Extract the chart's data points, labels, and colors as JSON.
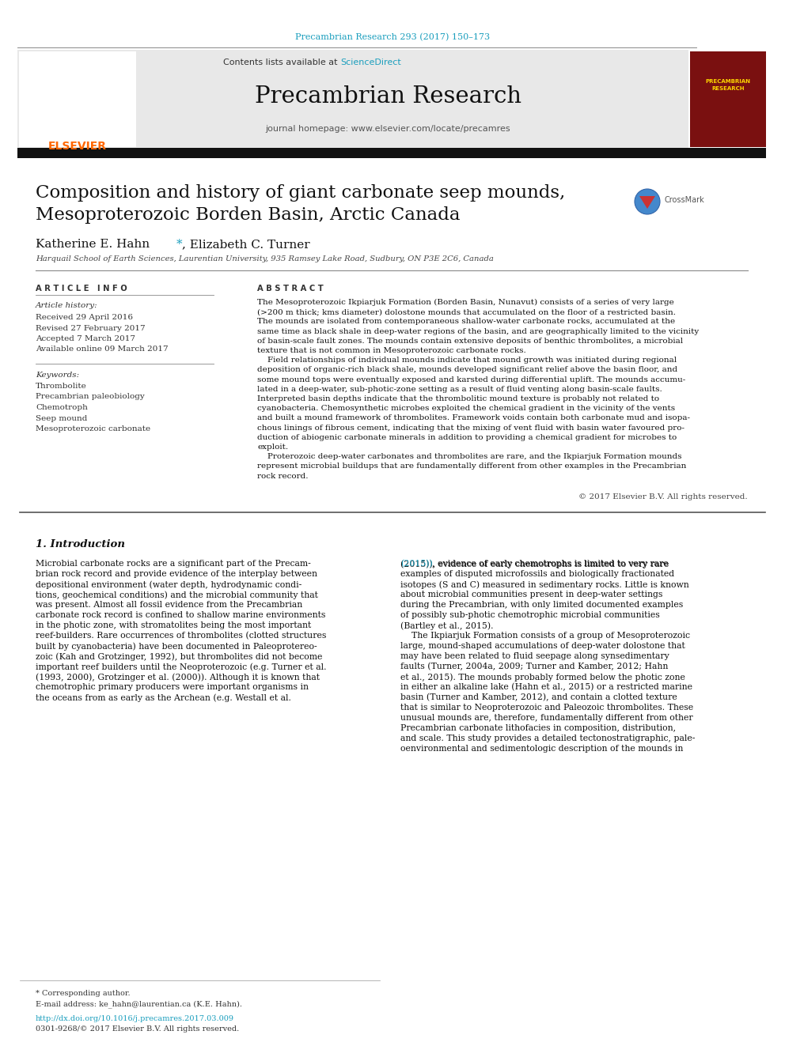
{
  "bg_color": "#ffffff",
  "header_citation": "Precambrian Research 293 (2017) 150–173",
  "header_citation_color": "#1a9ebd",
  "journal_name": "Precambrian Research",
  "contents_line": "Contents lists available at",
  "sciencedirect_color": "#1a9ebd",
  "journal_homepage": "journal homepage: www.elsevier.com/locate/precamres",
  "header_bg": "#e8e8e8",
  "article_title_line1": "Composition and history of giant carbonate seep mounds,",
  "article_title_line2": "Mesoproterozoic Borden Basin, Arctic Canada",
  "affiliation": "Harquail School of Earth Sciences, Laurentian University, 935 Ramsey Lake Road, Sudbury, ON P3E 2C6, Canada",
  "article_history_label": "Article history:",
  "received": "Received 29 April 2016",
  "revised": "Revised 27 February 2017",
  "accepted": "Accepted 7 March 2017",
  "available": "Available online 09 March 2017",
  "keywords_label": "Keywords:",
  "keywords": [
    "Thrombolite",
    "Precambrian paleobiology",
    "Chemotroph",
    "Seep mound",
    "Mesoproterozoic carbonate"
  ],
  "abstract_lines": [
    "The Mesoproterozoic Ikpiarjuk Formation (Borden Basin, Nunavut) consists of a series of very large",
    "(>200 m thick; kms diameter) dolostone mounds that accumulated on the floor of a restricted basin.",
    "The mounds are isolated from contemporaneous shallow-water carbonate rocks, accumulated at the",
    "same time as black shale in deep-water regions of the basin, and are geographically limited to the vicinity",
    "of basin-scale fault zones. The mounds contain extensive deposits of benthic thrombolites, a microbial",
    "texture that is not common in Mesoproterozoic carbonate rocks.",
    "    Field relationships of individual mounds indicate that mound growth was initiated during regional",
    "deposition of organic-rich black shale, mounds developed significant relief above the basin floor, and",
    "some mound tops were eventually exposed and karsted during differential uplift. The mounds accumu-",
    "lated in a deep-water, sub-photic-zone setting as a result of fluid venting along basin-scale faults.",
    "Interpreted basin depths indicate that the thrombolitic mound texture is probably not related to",
    "cyanobacteria. Chemosynthetic microbes exploited the chemical gradient in the vicinity of the vents",
    "and built a mound framework of thrombolites. Framework voids contain both carbonate mud and isopa-",
    "chous linings of fibrous cement, indicating that the mixing of vent fluid with basin water favoured pro-",
    "duction of abiogenic carbonate minerals in addition to providing a chemical gradient for microbes to",
    "exploit.",
    "    Proterozoic deep-water carbonates and thrombolites are rare, and the Ikpiarjuk Formation mounds",
    "represent microbial buildups that are fundamentally different from other examples in the Precambrian",
    "rock record."
  ],
  "copyright": "© 2017 Elsevier B.V. All rights reserved.",
  "section1_header": "1. Introduction",
  "intro_left": [
    "Microbial carbonate rocks are a significant part of the Precam-",
    "brian rock record and provide evidence of the interplay between",
    "depositional environment (water depth, hydrodynamic condi-",
    "tions, geochemical conditions) and the microbial community that",
    "was present. Almost all fossil evidence from the Precambrian",
    "carbonate rock record is confined to shallow marine environments",
    "in the photic zone, with stromatolites being the most important",
    "reef-builders. Rare occurrences of thrombolites (clotted structures",
    "built by cyanobacteria) have been documented in Paleoprotereo-",
    "zoic (Kah and Grotzinger, 1992), but thrombolites did not become",
    "important reef builders until the Neoproterozoic (e.g. Turner et al.",
    "(1993, 2000), Grotzinger et al. (2000)). Although it is known that",
    "chemotrophic primary producers were important organisms in",
    "the oceans from as early as the Archean (e.g. Westall et al."
  ],
  "intro_right": [
    "(2015)), evidence of early chemotrophs is limited to very rare",
    "examples of disputed microfossils and biologically fractionated",
    "isotopes (S and C) measured in sedimentary rocks. Little is known",
    "about microbial communities present in deep-water settings",
    "during the Precambrian, with only limited documented examples",
    "of possibly sub-photic chemotrophic microbial communities",
    "(Bartley et al., 2015).",
    "    The Ikpiarjuk Formation consists of a group of Mesoproterozoic",
    "large, mound-shaped accumulations of deep-water dolostone that",
    "may have been related to fluid seepage along synsedimentary",
    "faults (Turner, 2004a, 2009; Turner and Kamber, 2012; Hahn",
    "et al., 2015). The mounds probably formed below the photic zone",
    "in either an alkaline lake (Hahn et al., 2015) or a restricted marine",
    "basin (Turner and Kamber, 2012), and contain a clotted texture",
    "that is similar to Neoproterozoic and Paleozoic thrombolites. These",
    "unusual mounds are, therefore, fundamentally different from other",
    "Precambrian carbonate lithofacies in composition, distribution,",
    "and scale. This study provides a detailed tectonostratigraphic, pale-",
    "oenvironmental and sedimentologic description of the mounds in"
  ],
  "footnote_star": "* Corresponding author.",
  "footnote_email": "E-mail address: ke_hahn@laurentian.ca (K.E. Hahn).",
  "footnote_doi": "http://dx.doi.org/10.1016/j.precamres.2017.03.009",
  "footnote_issn": "0301-9268/© 2017 Elsevier B.V. All rights reserved.",
  "elsevier_color": "#ff6600",
  "link_color": "#1a9ebd",
  "black_bar_color": "#111111",
  "text_color": "#111111",
  "gray_text": "#444444"
}
